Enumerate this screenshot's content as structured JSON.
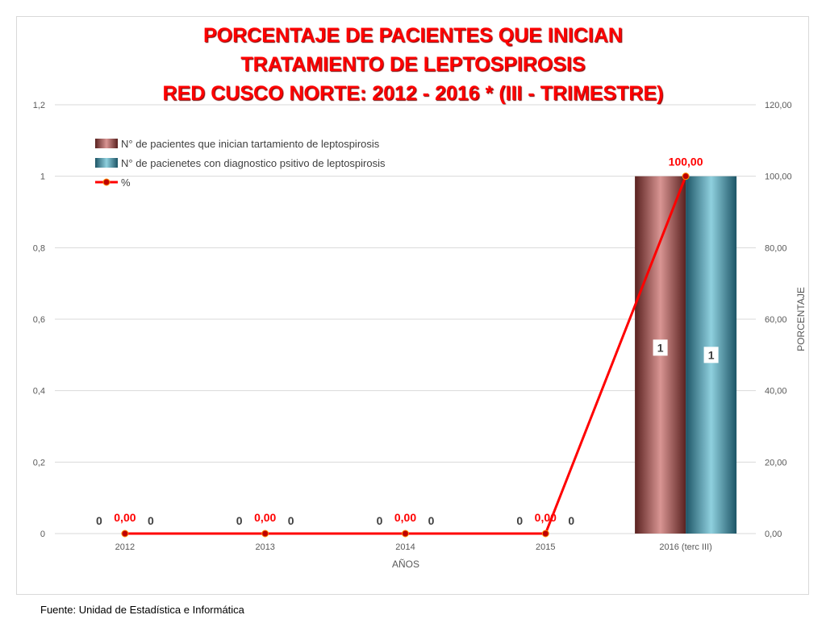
{
  "title_lines": [
    "PORCENTAJE DE PACIENTES QUE INICIAN",
    "TRATAMIENTO DE LEPTOSPIROSIS",
    "RED CUSCO NORTE: 2012 - 2016 * (III - TRIMESTRE)"
  ],
  "source": "Fuente: Unidad de Estadística e Informática",
  "chart_data": {
    "type": "bar",
    "categories": [
      "2012",
      "2013",
      "2014",
      "2015",
      "2016 (terc III)"
    ],
    "xlabel": "AÑOS",
    "ylabel": "",
    "y2label": "PORCENTAJE",
    "ylim": [
      0,
      1.2
    ],
    "y2lim": [
      0,
      120
    ],
    "yticks": [
      "0",
      "0,2",
      "0,4",
      "0,6",
      "0,8",
      "1",
      "1,2"
    ],
    "y2ticks": [
      "0,00",
      "20,00",
      "40,00",
      "60,00",
      "80,00",
      "100,00",
      "120,00"
    ],
    "grid": true,
    "legend_position": "top-left",
    "series": [
      {
        "name": "N° de pacientes que inician tartamiento de leptospirosis",
        "type": "bar",
        "axis": "left",
        "values": [
          0,
          0,
          0,
          0,
          1
        ],
        "labels": [
          "0",
          "0",
          "0",
          "0",
          "1"
        ],
        "color": "#a0524f"
      },
      {
        "name": "N° de pacienetes con diagnostico psitivo de leptospirosis",
        "type": "bar",
        "axis": "left",
        "values": [
          0,
          0,
          0,
          0,
          1
        ],
        "labels": [
          "0",
          "0",
          "0",
          "0",
          "1"
        ],
        "color": "#3b8fa3"
      },
      {
        "name": "%",
        "type": "line",
        "axis": "right",
        "values": [
          0,
          0,
          0,
          0,
          100
        ],
        "labels": [
          "0,00",
          "0,00",
          "0,00",
          "0,00",
          "100,00"
        ],
        "color": "#ff0000"
      }
    ]
  }
}
